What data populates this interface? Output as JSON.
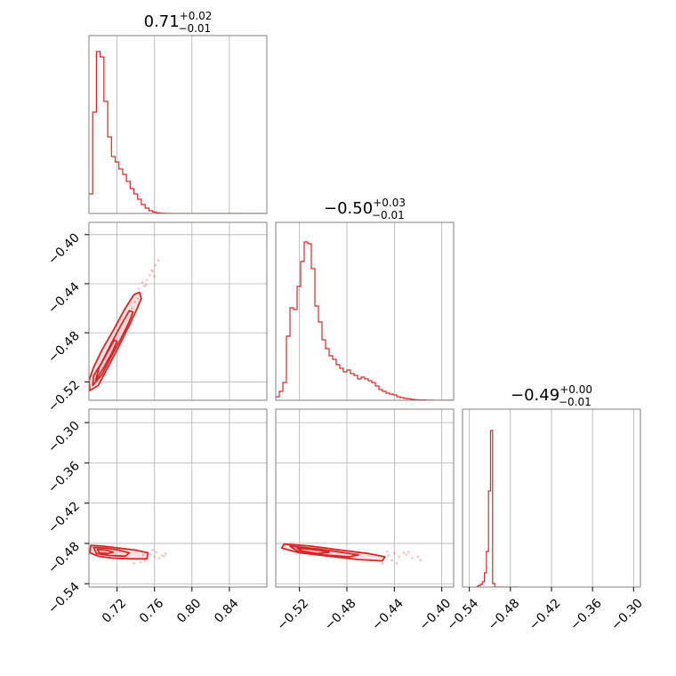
{
  "colors": {
    "accent": "#d62728",
    "fill": "#f9c8c8",
    "grid": "#b0b0b0",
    "frame": "#808080"
  },
  "chart_data": [
    {
      "type": "histogram",
      "panel": "diag-0",
      "title": {
        "median": "0.71",
        "upper": "+0.02",
        "lower": "−0.01"
      },
      "xlim": [
        0.69,
        0.88
      ],
      "xticks": [
        0.72,
        0.76,
        0.8,
        0.84
      ],
      "bins_start": 0.69,
      "bin_width": 0.004,
      "counts": [
        0.11,
        0.57,
        0.91,
        0.88,
        0.63,
        0.43,
        0.32,
        0.29,
        0.25,
        0.22,
        0.18,
        0.14,
        0.11,
        0.08,
        0.05,
        0.03,
        0.015,
        0.008,
        0.004,
        0.002,
        0.001,
        0.001,
        0.0,
        0.0,
        0.0,
        0.0,
        0.0,
        0.0,
        0.0,
        0.0,
        0.0,
        0.0,
        0.0,
        0.0,
        0.0,
        0.0,
        0.0,
        0.0,
        0.0,
        0.0,
        0.0,
        0.0,
        0.0,
        0.0,
        0.0,
        0.0,
        0.0,
        0.0
      ]
    },
    {
      "type": "histogram",
      "panel": "diag-1",
      "title": {
        "median": "−0.50",
        "upper": "+0.03",
        "lower": "−0.01"
      },
      "xlim": [
        -0.54,
        -0.39
      ],
      "xticks": [
        -0.52,
        -0.48,
        -0.44,
        -0.4
      ],
      "bins_start": -0.54,
      "bin_width": 0.003,
      "counts": [
        0.02,
        0.05,
        0.1,
        0.36,
        0.52,
        0.51,
        0.64,
        0.78,
        0.89,
        0.88,
        0.74,
        0.53,
        0.44,
        0.34,
        0.29,
        0.25,
        0.23,
        0.2,
        0.18,
        0.16,
        0.17,
        0.15,
        0.14,
        0.12,
        0.13,
        0.12,
        0.11,
        0.1,
        0.08,
        0.06,
        0.05,
        0.04,
        0.035,
        0.03,
        0.02,
        0.015,
        0.01,
        0.008,
        0.005,
        0.003,
        0.002,
        0.002,
        0.001,
        0.001,
        0.0,
        0.0,
        0.0,
        0.0,
        0.0,
        0.0
      ]
    },
    {
      "type": "histogram",
      "panel": "diag-2",
      "title": {
        "median": "−0.49",
        "upper": "+0.00",
        "lower": "−0.01"
      },
      "xlim": [
        -0.55,
        -0.29
      ],
      "xticks": [
        -0.54,
        -0.48,
        -0.42,
        -0.36,
        -0.3
      ],
      "bins_start": -0.53,
      "bin_width": 0.003,
      "counts": [
        0.003,
        0.008,
        0.015,
        0.03,
        0.08,
        0.2,
        0.54,
        0.88,
        0.02,
        0.0,
        0.0,
        0.0,
        0.0,
        0.0,
        0.0,
        0.0,
        0.0,
        0.0,
        0.0,
        0.0
      ]
    },
    {
      "type": "contour",
      "panel": "row1-col0",
      "xlim": [
        0.69,
        0.88
      ],
      "ylim": [
        -0.535,
        -0.39
      ],
      "yticks": [
        -0.4,
        -0.44,
        -0.48,
        -0.52
      ],
      "levels": [
        [
          [
            0.691,
            -0.527
          ],
          [
            0.7,
            -0.523
          ],
          [
            0.711,
            -0.507
          ],
          [
            0.722,
            -0.491
          ],
          [
            0.733,
            -0.474
          ],
          [
            0.741,
            -0.461
          ],
          [
            0.746,
            -0.452
          ],
          [
            0.744,
            -0.447
          ],
          [
            0.738,
            -0.449
          ],
          [
            0.728,
            -0.461
          ],
          [
            0.716,
            -0.478
          ],
          [
            0.704,
            -0.494
          ],
          [
            0.695,
            -0.508
          ],
          [
            0.69,
            -0.519
          ]
        ],
        [
          [
            0.694,
            -0.523
          ],
          [
            0.704,
            -0.514
          ],
          [
            0.714,
            -0.499
          ],
          [
            0.724,
            -0.485
          ],
          [
            0.733,
            -0.471
          ],
          [
            0.737,
            -0.463
          ],
          [
            0.733,
            -0.462
          ],
          [
            0.724,
            -0.474
          ],
          [
            0.713,
            -0.49
          ],
          [
            0.703,
            -0.505
          ],
          [
            0.695,
            -0.515
          ]
        ],
        [
          [
            0.697,
            -0.519
          ],
          [
            0.706,
            -0.508
          ],
          [
            0.714,
            -0.497
          ],
          [
            0.72,
            -0.487
          ],
          [
            0.717,
            -0.486
          ],
          [
            0.709,
            -0.497
          ],
          [
            0.701,
            -0.508
          ]
        ]
      ],
      "scatter": [
        [
          0.746,
          -0.448
        ],
        [
          0.752,
          -0.437
        ],
        [
          0.758,
          -0.43
        ],
        [
          0.761,
          -0.425
        ],
        [
          0.749,
          -0.442
        ],
        [
          0.755,
          -0.433
        ],
        [
          0.742,
          -0.452
        ],
        [
          0.736,
          -0.46
        ],
        [
          0.764,
          -0.421
        ],
        [
          0.743,
          -0.444
        ],
        [
          0.751,
          -0.441
        ],
        [
          0.757,
          -0.429
        ],
        [
          0.739,
          -0.455
        ],
        [
          0.76,
          -0.434
        ],
        [
          0.747,
          -0.439
        ]
      ]
    },
    {
      "type": "contour",
      "panel": "row2-col0",
      "xlim": [
        0.69,
        0.88
      ],
      "ylim": [
        -0.545,
        -0.28
      ],
      "yticks": [
        -0.3,
        -0.36,
        -0.42,
        -0.48,
        -0.54
      ],
      "levels": [
        [
          [
            0.692,
            -0.483
          ],
          [
            0.705,
            -0.484
          ],
          [
            0.722,
            -0.487
          ],
          [
            0.74,
            -0.49
          ],
          [
            0.753,
            -0.494
          ],
          [
            0.752,
            -0.503
          ],
          [
            0.735,
            -0.503
          ],
          [
            0.715,
            -0.502
          ],
          [
            0.7,
            -0.499
          ],
          [
            0.691,
            -0.494
          ]
        ],
        [
          [
            0.695,
            -0.486
          ],
          [
            0.708,
            -0.487
          ],
          [
            0.722,
            -0.49
          ],
          [
            0.733,
            -0.494
          ],
          [
            0.729,
            -0.499
          ],
          [
            0.712,
            -0.498
          ],
          [
            0.698,
            -0.495
          ]
        ],
        [
          [
            0.699,
            -0.489
          ],
          [
            0.709,
            -0.49
          ],
          [
            0.716,
            -0.493
          ],
          [
            0.71,
            -0.495
          ],
          [
            0.701,
            -0.494
          ]
        ]
      ],
      "scatter": [
        [
          0.756,
          -0.496
        ],
        [
          0.762,
          -0.493
        ],
        [
          0.768,
          -0.498
        ],
        [
          0.76,
          -0.5
        ],
        [
          0.772,
          -0.495
        ],
        [
          0.75,
          -0.506
        ],
        [
          0.745,
          -0.508
        ],
        [
          0.738,
          -0.51
        ],
        [
          0.765,
          -0.502
        ],
        [
          0.758,
          -0.49
        ],
        [
          0.77,
          -0.499
        ],
        [
          0.748,
          -0.497
        ]
      ]
    },
    {
      "type": "contour",
      "panel": "row2-col1",
      "xlim": [
        -0.54,
        -0.39
      ],
      "ylim": [
        -0.545,
        -0.28
      ],
      "levels": [
        [
          [
            -0.533,
            -0.481
          ],
          [
            -0.51,
            -0.484
          ],
          [
            -0.485,
            -0.49
          ],
          [
            -0.462,
            -0.495
          ],
          [
            -0.448,
            -0.5
          ],
          [
            -0.45,
            -0.506
          ],
          [
            -0.47,
            -0.504
          ],
          [
            -0.495,
            -0.499
          ],
          [
            -0.52,
            -0.494
          ],
          [
            -0.535,
            -0.487
          ]
        ],
        [
          [
            -0.528,
            -0.484
          ],
          [
            -0.505,
            -0.488
          ],
          [
            -0.482,
            -0.494
          ],
          [
            -0.47,
            -0.497
          ],
          [
            -0.478,
            -0.5
          ],
          [
            -0.5,
            -0.497
          ],
          [
            -0.522,
            -0.491
          ]
        ],
        [
          [
            -0.522,
            -0.487
          ],
          [
            -0.505,
            -0.49
          ],
          [
            -0.495,
            -0.493
          ],
          [
            -0.505,
            -0.495
          ],
          [
            -0.518,
            -0.491
          ]
        ]
      ],
      "scatter": [
        [
          -0.445,
          -0.498
        ],
        [
          -0.44,
          -0.495
        ],
        [
          -0.436,
          -0.5
        ],
        [
          -0.43,
          -0.497
        ],
        [
          -0.442,
          -0.505
        ],
        [
          -0.438,
          -0.51
        ],
        [
          -0.425,
          -0.502
        ],
        [
          -0.42,
          -0.5
        ],
        [
          -0.432,
          -0.494
        ],
        [
          -0.45,
          -0.51
        ],
        [
          -0.418,
          -0.505
        ],
        [
          -0.428,
          -0.493
        ],
        [
          -0.446,
          -0.492
        ]
      ]
    }
  ]
}
